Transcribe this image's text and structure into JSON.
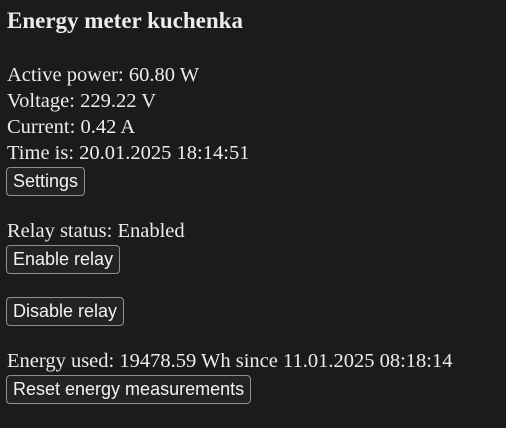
{
  "page": {
    "title": "Energy meter kuchenka"
  },
  "readings": {
    "active_power_label": "Active power:",
    "active_power_value": "60.80 W",
    "voltage_label": "Voltage:",
    "voltage_value": "229.22 V",
    "current_label": "Current:",
    "current_value": "0.42 A",
    "time_label": "Time is:",
    "time_value": "20.01.2025 18:14:51"
  },
  "buttons": {
    "settings": "Settings",
    "enable_relay": "Enable relay",
    "disable_relay": "Disable relay",
    "reset_energy": "Reset energy measurements"
  },
  "relay": {
    "status_label": "Relay status:",
    "status_value": "Enabled"
  },
  "energy": {
    "label": "Energy used:",
    "value": "19478.59 Wh",
    "since_label": "since",
    "since_value": "11.01.2025 08:18:14"
  }
}
